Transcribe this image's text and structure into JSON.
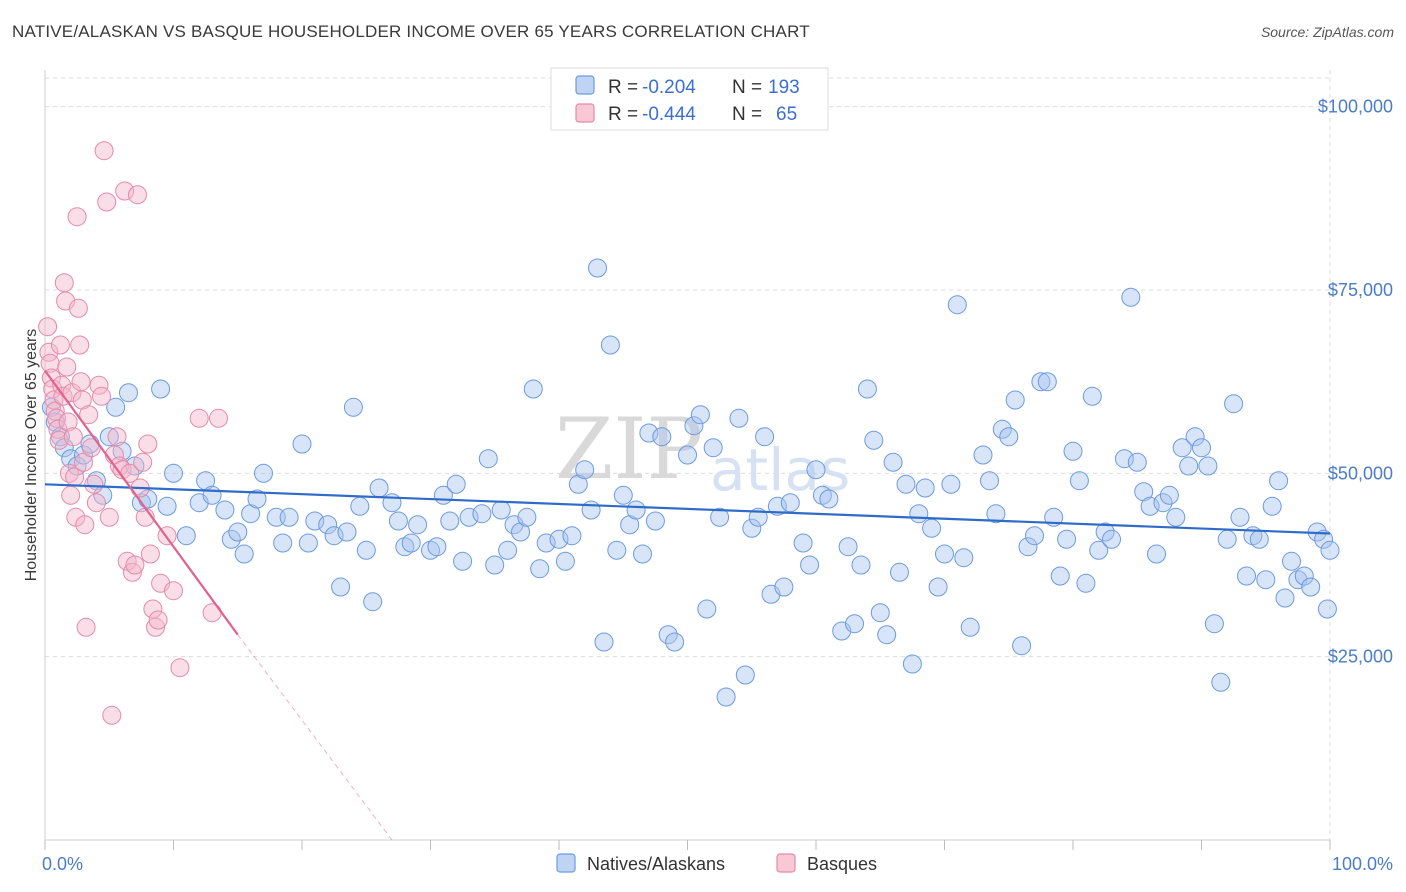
{
  "title": "NATIVE/ALASKAN VS BASQUE HOUSEHOLDER INCOME OVER 65 YEARS CORRELATION CHART",
  "source": "Source: ZipAtlas.com",
  "watermark": {
    "zip": "ZIP",
    "atlas": "atlas"
  },
  "chart_data": {
    "type": "scatter",
    "xlabel": "",
    "ylabel": "Householder Income Over 65 years",
    "xlim": [
      0,
      100
    ],
    "ylim": [
      0,
      105000
    ],
    "x_tick_labels": [
      {
        "value": 0,
        "label": "0.0%"
      },
      {
        "value": 100,
        "label": "100.0%"
      }
    ],
    "y_tick_labels": [
      {
        "value": 25000,
        "label": "$25,000"
      },
      {
        "value": 50000,
        "label": "$50,000"
      },
      {
        "value": 75000,
        "label": "$75,000"
      },
      {
        "value": 100000,
        "label": "$100,000"
      }
    ],
    "grid": true,
    "legend_position": "top-center",
    "legend": [
      {
        "r_label": "R = ",
        "r_value": "-0.204",
        "n_label": "N = ",
        "n_value": "193",
        "color": "#a9c4ef"
      },
      {
        "r_label": "R = ",
        "r_value": "-0.444",
        "n_label": "N = ",
        "n_value": "65",
        "color": "#f5b5c9"
      }
    ],
    "series": [
      {
        "name": "Natives/Alaskans",
        "color": "#a9c4ef",
        "stroke": "#6b9be0",
        "trend": {
          "x0": 0,
          "y0": 48500,
          "x1": 100,
          "y1": 41800,
          "color": "#2f6cc9"
        },
        "points": [
          [
            0.5,
            59000
          ],
          [
            0.8,
            57000
          ],
          [
            1.2,
            55000
          ],
          [
            1.5,
            53500
          ],
          [
            2,
            52000
          ],
          [
            2.5,
            51000
          ],
          [
            3,
            52500
          ],
          [
            3.5,
            54000
          ],
          [
            4,
            49000
          ],
          [
            4.5,
            47000
          ],
          [
            5,
            55000
          ],
          [
            5.5,
            59000
          ],
          [
            6,
            53000
          ],
          [
            6.5,
            61000
          ],
          [
            7,
            51000
          ],
          [
            7.5,
            46000
          ],
          [
            8,
            46500
          ],
          [
            9,
            61500
          ],
          [
            9.5,
            45500
          ],
          [
            10,
            50000
          ],
          [
            11,
            41500
          ],
          [
            12,
            46000
          ],
          [
            12.5,
            49000
          ],
          [
            13,
            47000
          ],
          [
            14,
            45000
          ],
          [
            14.5,
            41000
          ],
          [
            15,
            42000
          ],
          [
            15.5,
            39000
          ],
          [
            16,
            44500
          ],
          [
            16.5,
            46500
          ],
          [
            17,
            50000
          ],
          [
            18,
            44000
          ],
          [
            18.5,
            40500
          ],
          [
            19,
            44000
          ],
          [
            20,
            54000
          ],
          [
            20.5,
            40500
          ],
          [
            21,
            43500
          ],
          [
            22,
            43000
          ],
          [
            22.5,
            41500
          ],
          [
            23,
            34500
          ],
          [
            23.5,
            42000
          ],
          [
            24,
            59000
          ],
          [
            24.5,
            45500
          ],
          [
            25,
            39500
          ],
          [
            25.5,
            32500
          ],
          [
            26,
            48000
          ],
          [
            27,
            46000
          ],
          [
            27.5,
            43500
          ],
          [
            28,
            40000
          ],
          [
            28.5,
            40500
          ],
          [
            29,
            43000
          ],
          [
            30,
            39500
          ],
          [
            30.5,
            40000
          ],
          [
            31,
            47000
          ],
          [
            31.5,
            43500
          ],
          [
            32,
            48500
          ],
          [
            32.5,
            38000
          ],
          [
            33,
            44000
          ],
          [
            34,
            44500
          ],
          [
            34.5,
            52000
          ],
          [
            35,
            37500
          ],
          [
            35.5,
            45000
          ],
          [
            36,
            39500
          ],
          [
            36.5,
            43000
          ],
          [
            37,
            42000
          ],
          [
            37.5,
            44000
          ],
          [
            38,
            61500
          ],
          [
            38.5,
            37000
          ],
          [
            39,
            40500
          ],
          [
            40,
            41000
          ],
          [
            40.5,
            38000
          ],
          [
            41,
            41500
          ],
          [
            41.5,
            48500
          ],
          [
            42,
            50500
          ],
          [
            42.5,
            45000
          ],
          [
            43,
            78000
          ],
          [
            43.5,
            27000
          ],
          [
            44,
            67500
          ],
          [
            44.5,
            39500
          ],
          [
            45,
            47000
          ],
          [
            45.5,
            43000
          ],
          [
            46,
            45000
          ],
          [
            46.5,
            39000
          ],
          [
            47,
            55500
          ],
          [
            47.5,
            43500
          ],
          [
            48,
            55000
          ],
          [
            48.5,
            28000
          ],
          [
            49,
            27000
          ],
          [
            50,
            52500
          ],
          [
            50.5,
            56500
          ],
          [
            51,
            58000
          ],
          [
            51.5,
            31500
          ],
          [
            52,
            53500
          ],
          [
            52.5,
            44000
          ],
          [
            53,
            19500
          ],
          [
            54,
            57500
          ],
          [
            54.5,
            22500
          ],
          [
            55,
            42500
          ],
          [
            55.5,
            44000
          ],
          [
            56,
            55000
          ],
          [
            56.5,
            33500
          ],
          [
            57,
            45500
          ],
          [
            57.5,
            34500
          ],
          [
            58,
            46000
          ],
          [
            59,
            40500
          ],
          [
            59.5,
            37500
          ],
          [
            60,
            50500
          ],
          [
            60.5,
            47000
          ],
          [
            61,
            46500
          ],
          [
            62,
            28500
          ],
          [
            62.5,
            40000
          ],
          [
            63,
            29500
          ],
          [
            63.5,
            37500
          ],
          [
            64,
            61500
          ],
          [
            64.5,
            54500
          ],
          [
            65,
            31000
          ],
          [
            65.5,
            28000
          ],
          [
            66,
            51500
          ],
          [
            66.5,
            36500
          ],
          [
            67,
            48500
          ],
          [
            67.5,
            24000
          ],
          [
            68,
            44500
          ],
          [
            68.5,
            48000
          ],
          [
            69,
            42500
          ],
          [
            69.5,
            34500
          ],
          [
            70,
            39000
          ],
          [
            70.5,
            48500
          ],
          [
            71,
            73000
          ],
          [
            71.5,
            38500
          ],
          [
            72,
            29000
          ],
          [
            73,
            52500
          ],
          [
            73.5,
            49000
          ],
          [
            74,
            44500
          ],
          [
            74.5,
            56000
          ],
          [
            75,
            55000
          ],
          [
            75.5,
            60000
          ],
          [
            76,
            26500
          ],
          [
            76.5,
            40000
          ],
          [
            77,
            41500
          ],
          [
            77.5,
            62500
          ],
          [
            78,
            62500
          ],
          [
            78.5,
            44000
          ],
          [
            79,
            36000
          ],
          [
            79.5,
            41000
          ],
          [
            80,
            53000
          ],
          [
            80.5,
            49000
          ],
          [
            81,
            35000
          ],
          [
            81.5,
            60500
          ],
          [
            82,
            39500
          ],
          [
            82.5,
            42000
          ],
          [
            83,
            41000
          ],
          [
            84,
            52000
          ],
          [
            84.5,
            74000
          ],
          [
            85,
            51500
          ],
          [
            85.5,
            47500
          ],
          [
            86,
            45500
          ],
          [
            86.5,
            39000
          ],
          [
            87,
            46000
          ],
          [
            87.5,
            47000
          ],
          [
            88,
            44000
          ],
          [
            88.5,
            53500
          ],
          [
            89,
            51000
          ],
          [
            89.5,
            55000
          ],
          [
            90,
            53500
          ],
          [
            90.5,
            51000
          ],
          [
            91,
            29500
          ],
          [
            91.5,
            21500
          ],
          [
            92,
            41000
          ],
          [
            92.5,
            59500
          ],
          [
            93,
            44000
          ],
          [
            93.5,
            36000
          ],
          [
            94,
            41500
          ],
          [
            94.5,
            41000
          ],
          [
            95,
            35500
          ],
          [
            95.5,
            45500
          ],
          [
            96,
            49000
          ],
          [
            96.5,
            33000
          ],
          [
            97,
            38000
          ],
          [
            97.5,
            35500
          ],
          [
            98,
            36000
          ],
          [
            98.5,
            34500
          ],
          [
            99,
            42000
          ],
          [
            99.5,
            41000
          ],
          [
            100,
            39500
          ],
          [
            99.8,
            31500
          ]
        ]
      },
      {
        "name": "Basques",
        "color": "#f5b5c9",
        "stroke": "#e58aa8",
        "trend": {
          "x0": 0,
          "y0": 64000,
          "x1": 15,
          "y1": 28000,
          "color": "#e0638f"
        },
        "trend_extension": {
          "x0": 15,
          "y0": 28000,
          "x1": 27,
          "y1": 0
        },
        "points": [
          [
            0.2,
            70000
          ],
          [
            0.3,
            66500
          ],
          [
            0.4,
            65000
          ],
          [
            0.5,
            63000
          ],
          [
            0.6,
            61500
          ],
          [
            0.7,
            60000
          ],
          [
            0.8,
            58500
          ],
          [
            0.9,
            57500
          ],
          [
            1,
            56000
          ],
          [
            1.1,
            54500
          ],
          [
            1.2,
            67500
          ],
          [
            1.3,
            62000
          ],
          [
            1.4,
            60500
          ],
          [
            1.5,
            76000
          ],
          [
            1.6,
            73500
          ],
          [
            1.7,
            64500
          ],
          [
            1.8,
            57000
          ],
          [
            1.9,
            50000
          ],
          [
            2,
            47000
          ],
          [
            2.1,
            61000
          ],
          [
            2.2,
            55000
          ],
          [
            2.3,
            49500
          ],
          [
            2.4,
            44000
          ],
          [
            2.5,
            85000
          ],
          [
            2.6,
            72500
          ],
          [
            2.7,
            67500
          ],
          [
            2.8,
            62500
          ],
          [
            2.9,
            60000
          ],
          [
            3,
            51500
          ],
          [
            3.1,
            43000
          ],
          [
            3.2,
            29000
          ],
          [
            3.4,
            58000
          ],
          [
            3.6,
            53500
          ],
          [
            3.8,
            48500
          ],
          [
            4,
            46000
          ],
          [
            4.2,
            62000
          ],
          [
            4.4,
            60500
          ],
          [
            4.6,
            94000
          ],
          [
            4.8,
            87000
          ],
          [
            5,
            44000
          ],
          [
            5.2,
            17000
          ],
          [
            5.4,
            52500
          ],
          [
            5.6,
            55000
          ],
          [
            5.8,
            51000
          ],
          [
            6,
            50500
          ],
          [
            6.2,
            88500
          ],
          [
            6.4,
            38000
          ],
          [
            6.6,
            50000
          ],
          [
            6.8,
            36500
          ],
          [
            7,
            37500
          ],
          [
            7.2,
            88000
          ],
          [
            7.4,
            48000
          ],
          [
            7.6,
            51500
          ],
          [
            7.8,
            44000
          ],
          [
            8,
            54000
          ],
          [
            8.2,
            39000
          ],
          [
            8.4,
            31500
          ],
          [
            8.6,
            29000
          ],
          [
            8.8,
            30000
          ],
          [
            9,
            35000
          ],
          [
            9.5,
            41500
          ],
          [
            10,
            34000
          ],
          [
            10.5,
            23500
          ],
          [
            12,
            57500
          ],
          [
            13,
            31000
          ],
          [
            13.5,
            57500
          ]
        ]
      }
    ]
  },
  "bottom_legend": [
    "Natives/Alaskans",
    "Basques"
  ]
}
